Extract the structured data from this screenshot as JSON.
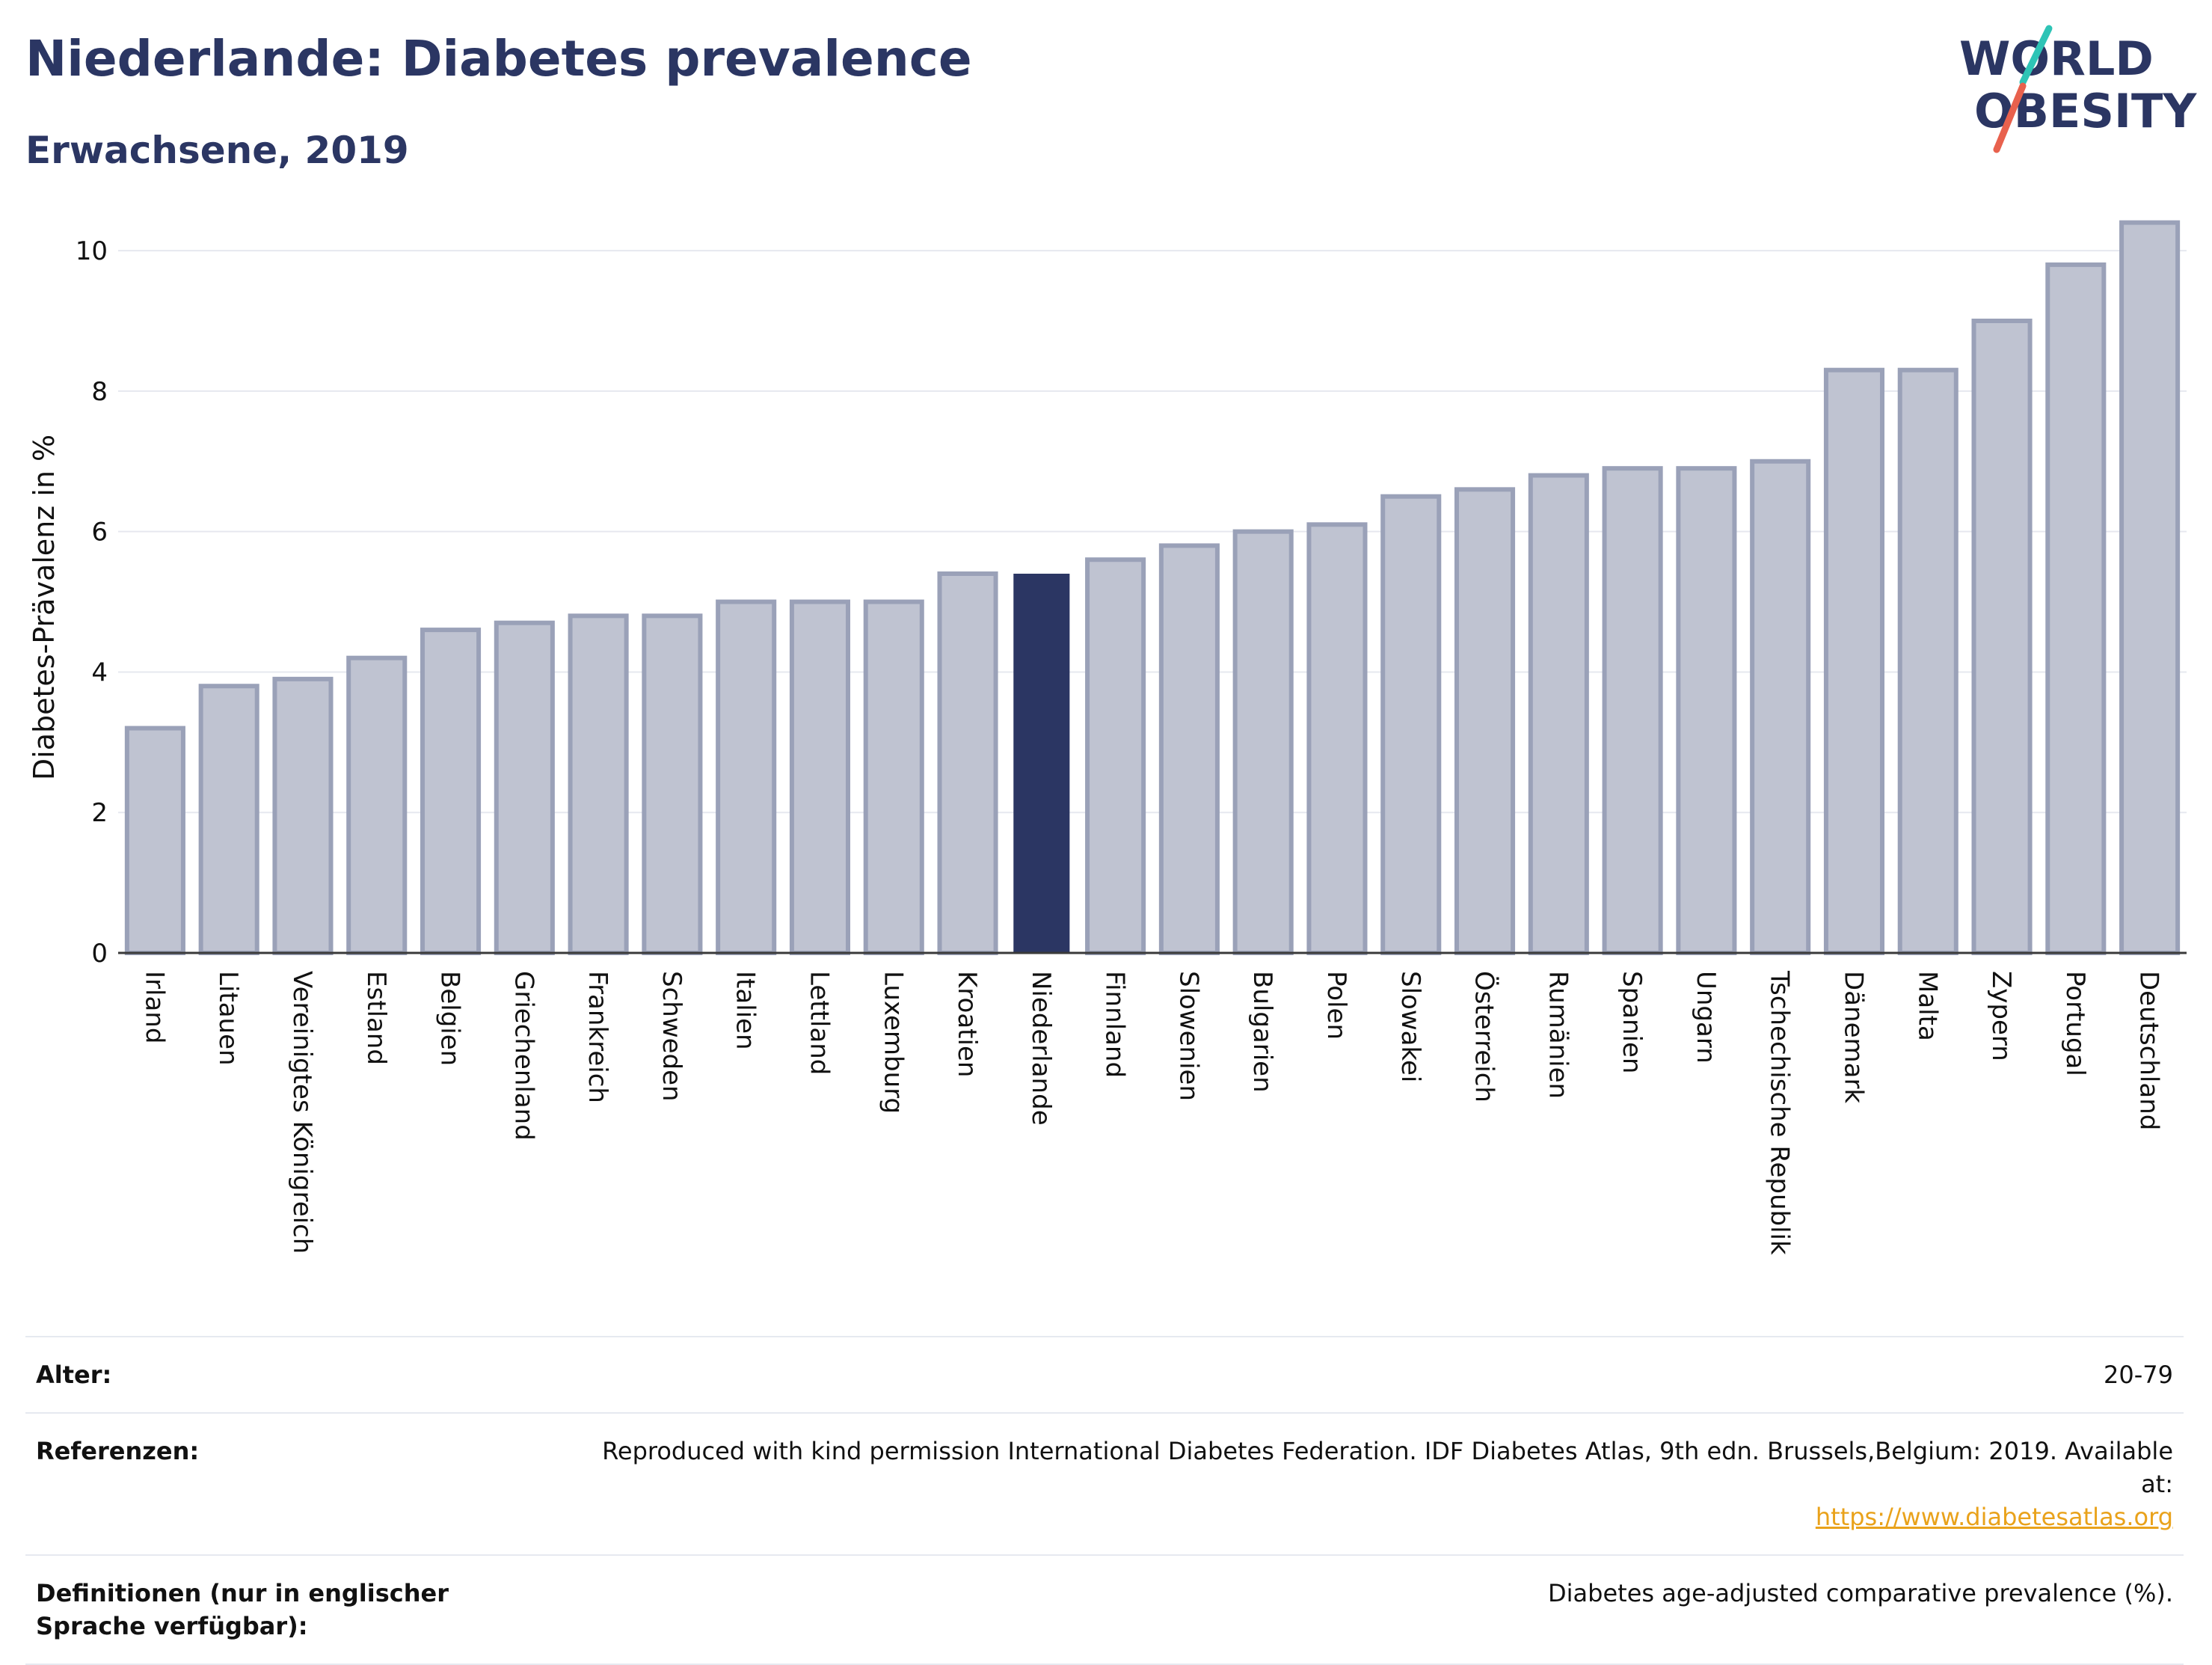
{
  "header": {
    "title": "Niederlande: Diabetes prevalence",
    "subtitle": "Erwachsene, 2019"
  },
  "logo": {
    "line1": "WORLD",
    "line2": "OBESITY"
  },
  "colors": {
    "highlight": "#2b3663",
    "bar": "#bfc3d1",
    "bar_edge": "#9aa1b8",
    "grid": "#e6e8ef",
    "logo_text": "#2b3663",
    "logo_teal": "#2ec4b6",
    "logo_red": "#e8614d",
    "link": "#e9a21b"
  },
  "chart_data": {
    "type": "bar",
    "ylabel": "Diabetes-Prävalenz in %",
    "ylim": [
      0,
      10.8
    ],
    "yticks": [
      0,
      2,
      4,
      6,
      8,
      10
    ],
    "grid": true,
    "highlight": "Niederlande",
    "categories": [
      "Irland",
      "Litauen",
      "Vereinigtes Königreich",
      "Estland",
      "Belgien",
      "Griechenland",
      "Frankreich",
      "Schweden",
      "Italien",
      "Lettland",
      "Luxemburg",
      "Kroatien",
      "Niederlande",
      "Finnland",
      "Slowenien",
      "Bulgarien",
      "Polen",
      "Slowakei",
      "Österreich",
      "Rumänien",
      "Spanien",
      "Ungarn",
      "Tschechische Republik",
      "Dänemark",
      "Malta",
      "Zypern",
      "Portugal",
      "Deutschland"
    ],
    "values": [
      3.2,
      3.8,
      3.9,
      4.2,
      4.6,
      4.7,
      4.8,
      4.8,
      5.0,
      5.0,
      5.0,
      5.4,
      5.4,
      5.6,
      5.8,
      6.0,
      6.1,
      6.5,
      6.6,
      6.8,
      6.9,
      6.9,
      7.0,
      8.3,
      8.3,
      9.0,
      9.8,
      10.4
    ]
  },
  "info": {
    "rows": [
      {
        "key": "Alter:",
        "value": "20-79"
      },
      {
        "key": "Referenzen:",
        "value": "Reproduced with kind permission International Diabetes Federation. IDF Diabetes Atlas, 9th edn. Brussels,Belgium: 2019. Available at:",
        "link": "https://www.diabetesatlas.org"
      },
      {
        "key": "Definitionen (nur in englischer Sprache verfügbar):",
        "value": "Diabetes age-adjusted comparative prevalence (%)."
      }
    ]
  }
}
